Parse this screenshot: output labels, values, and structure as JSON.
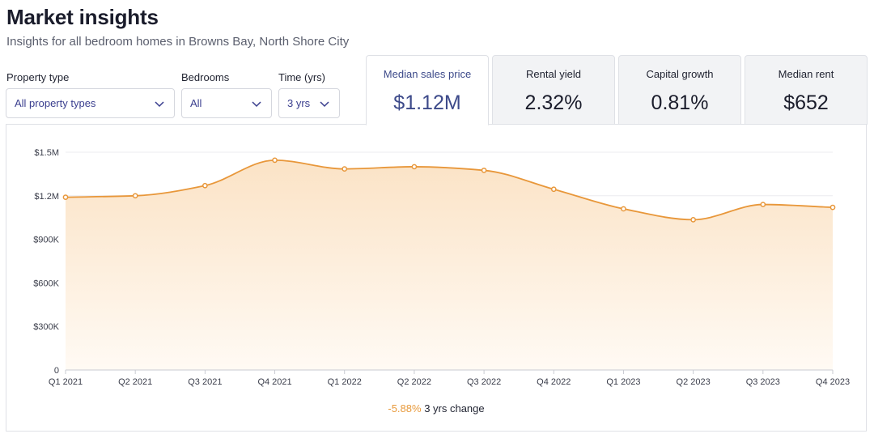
{
  "header": {
    "title": "Market insights",
    "subtitle": "Insights for all bedroom homes in Browns Bay, North Shore City"
  },
  "filters": {
    "property_type": {
      "label": "Property type",
      "value": "All property types"
    },
    "bedrooms": {
      "label": "Bedrooms",
      "value": "All"
    },
    "time": {
      "label": "Time (yrs)",
      "value": "3 yrs"
    }
  },
  "tabs": [
    {
      "label": "Median sales price",
      "value": "$1.12M",
      "active": true
    },
    {
      "label": "Rental yield",
      "value": "2.32%",
      "active": false
    },
    {
      "label": "Capital growth",
      "value": "0.81%",
      "active": false
    },
    {
      "label": "Median rent",
      "value": "$652",
      "active": false
    }
  ],
  "colors": {
    "accent": "#e8973a",
    "area_top": "#fbe3c6",
    "area_bottom": "#fffaf4",
    "active_tab_text": "#3d4a8a",
    "filter_text": "#3b3f8f"
  },
  "chart_data": {
    "type": "area",
    "categories": [
      "Q1 2021",
      "Q2 2021",
      "Q3 2021",
      "Q4 2021",
      "Q1 2022",
      "Q2 2022",
      "Q3 2022",
      "Q4 2022",
      "Q1 2023",
      "Q2 2023",
      "Q3 2023",
      "Q4 2023"
    ],
    "series": [
      {
        "values": [
          1190000,
          1200000,
          1270000,
          1445000,
          1385000,
          1400000,
          1375000,
          1245000,
          1110000,
          1035000,
          1140000,
          1120000
        ]
      }
    ],
    "y_ticks": [
      0,
      300000,
      600000,
      900000,
      1200000,
      1500000
    ],
    "y_tick_labels": [
      "0",
      "$300K",
      "$600K",
      "$900K",
      "$1.2M",
      "$1.5M"
    ],
    "ylim": [
      0,
      1500000
    ],
    "grid": true,
    "xlabel": "",
    "ylabel": ""
  },
  "change": {
    "value": "-5.88%",
    "label": "3 yrs change"
  }
}
